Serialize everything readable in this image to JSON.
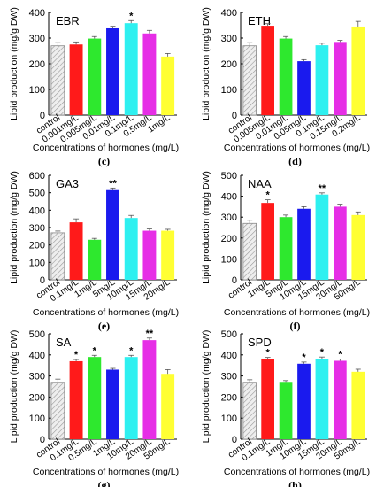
{
  "figure": {
    "x_axis_title": "Concentrations of hormones (mg/L)"
  },
  "colors": {
    "control": "#d8d8d8",
    "bars": [
      "#ff1a1a",
      "#2ee82e",
      "#1a1aee",
      "#2ef0f0",
      "#e62ee6",
      "#ffff33"
    ],
    "highlight": "#ff66cc",
    "axis": "#000000"
  },
  "chart_data": [
    {
      "type": "bar",
      "panel_label": "EBR",
      "letter": "(c)",
      "ylabel": "Lipid production (mg/g DW)",
      "xlabel": "Concentrations of hormones (mg/L)",
      "ylim": [
        0,
        400
      ],
      "yticks": [
        0,
        100,
        200,
        300,
        400
      ],
      "categories": [
        "control",
        "0.001mg/L",
        "0.005mg/L",
        "0.01mg/L",
        "0.1mg/L",
        "0.5mg/L",
        "1mg/L"
      ],
      "values": [
        270,
        275,
        298,
        338,
        358,
        318,
        228
      ],
      "errors": [
        12,
        10,
        8,
        8,
        10,
        12,
        12
      ],
      "stars": [
        "",
        "",
        "",
        "",
        "*",
        "",
        ""
      ]
    },
    {
      "type": "bar",
      "panel_label": "ETH",
      "letter": "(d)",
      "ylabel": "Lipid production (mg/g DW)",
      "xlabel": "Concentrations of hormones (mg/L)",
      "ylim": [
        0,
        400
      ],
      "yticks": [
        0,
        100,
        200,
        300,
        400
      ],
      "categories": [
        "control",
        "0.005mg/L",
        "0.01mg/L",
        "0.05mg/L",
        "0.1mg/L",
        "0.15mg/L",
        "0.2mg/L"
      ],
      "values": [
        270,
        348,
        298,
        210,
        272,
        285,
        345
      ],
      "errors": [
        12,
        8,
        8,
        6,
        8,
        6,
        20
      ],
      "stars": [
        "",
        "",
        "",
        "",
        "",
        "",
        ""
      ]
    },
    {
      "type": "bar",
      "panel_label": "GA3",
      "letter": "(e)",
      "ylabel": "Lipid production (mg/g DW)",
      "xlabel": "Concentrations of hormones (mg/L)",
      "ylim": [
        0,
        600
      ],
      "yticks": [
        0,
        100,
        200,
        300,
        400,
        500,
        600
      ],
      "categories": [
        "control",
        "0.1mg/L",
        "1mg/L",
        "5mg/L",
        "10mg/L",
        "15mg/L",
        "20mg/L"
      ],
      "values": [
        270,
        330,
        230,
        515,
        355,
        282,
        282
      ],
      "errors": [
        10,
        20,
        8,
        12,
        15,
        10,
        8
      ],
      "stars": [
        "",
        "",
        "",
        "**",
        "",
        "",
        ""
      ]
    },
    {
      "type": "bar",
      "panel_label": "NAA",
      "letter": "(f)",
      "ylabel": "Lipid production (mg/g DW)",
      "xlabel": "Concentrations of hormones (mg/L)",
      "ylim": [
        0,
        500
      ],
      "yticks": [
        0,
        100,
        200,
        300,
        400,
        500
      ],
      "categories": [
        "control",
        "1mg/L",
        "5mg/L",
        "10mg/L",
        "15mg/L",
        "20mg/L",
        "50mg/L"
      ],
      "values": [
        270,
        368,
        300,
        340,
        408,
        350,
        310
      ],
      "errors": [
        15,
        15,
        10,
        10,
        8,
        12,
        15
      ],
      "stars": [
        "",
        "*",
        "",
        "",
        "**",
        "",
        ""
      ]
    },
    {
      "type": "bar",
      "panel_label": "SA",
      "letter": "(g)",
      "ylabel": "Lipid production (mg/g DW)",
      "xlabel": "Concentrations of hormones (mg/L)",
      "ylim": [
        0,
        500
      ],
      "yticks": [
        0,
        100,
        200,
        300,
        400,
        500
      ],
      "categories": [
        "control",
        "0.1mg/L",
        "0.5mg/L",
        "1mg/L",
        "10mg/L",
        "20mg/L",
        "50mg/L"
      ],
      "values": [
        270,
        370,
        390,
        330,
        390,
        470,
        310
      ],
      "errors": [
        15,
        8,
        8,
        6,
        8,
        10,
        20
      ],
      "stars": [
        "",
        "*",
        "*",
        "",
        "*",
        "**",
        ""
      ]
    },
    {
      "type": "bar",
      "panel_label": "SPD",
      "letter": "(h)",
      "ylabel": "Lipid production (mg/g DW)",
      "xlabel": "Concentrations of hormones (mg/L)",
      "ylim": [
        0,
        500
      ],
      "yticks": [
        0,
        100,
        200,
        300,
        400,
        500
      ],
      "categories": [
        "control",
        "0.1mg/L",
        "1mg/L",
        "10mg/L",
        "15mg/L",
        "20mg/L",
        "50mg/L"
      ],
      "values": [
        270,
        380,
        272,
        358,
        380,
        372,
        320
      ],
      "errors": [
        12,
        8,
        6,
        8,
        10,
        8,
        12
      ],
      "stars": [
        "",
        "*",
        "",
        "*",
        "*",
        "*",
        ""
      ]
    }
  ]
}
